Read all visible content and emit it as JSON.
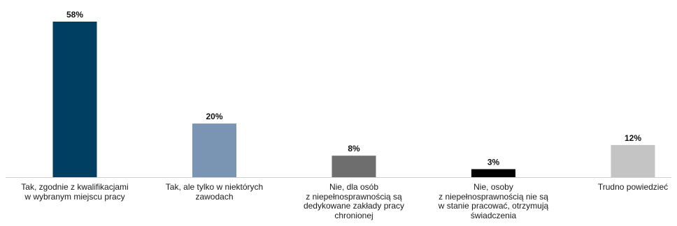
{
  "chart_data": {
    "type": "bar",
    "categories": [
      "Tak, zgodnie z kwalifikacjami\nw wybranym miejscu pracy",
      "Tak, ale tylko w niektórych\nzawodach",
      "Nie, dla osób\nz niepełnosprawnością są\ndedykowane zakłady pracy\nchronionej",
      "Nie, osoby\nz niepełnosprawnością nie są\nw stanie pracować, otrzymują\nświadczenia",
      "Trudno powiedzieć"
    ],
    "values": [
      58,
      20,
      8,
      3,
      12
    ],
    "value_labels": [
      "58%",
      "20%",
      "8%",
      "3%",
      "12%"
    ],
    "unit": "%",
    "ylim": [
      0,
      58
    ],
    "grid": false,
    "legend": "none",
    "colors": [
      "#003e62",
      "#7a95b3",
      "#6e6e6e",
      "#000000",
      "#c4c4c4"
    ],
    "axis_color": "#cfcfcf"
  }
}
